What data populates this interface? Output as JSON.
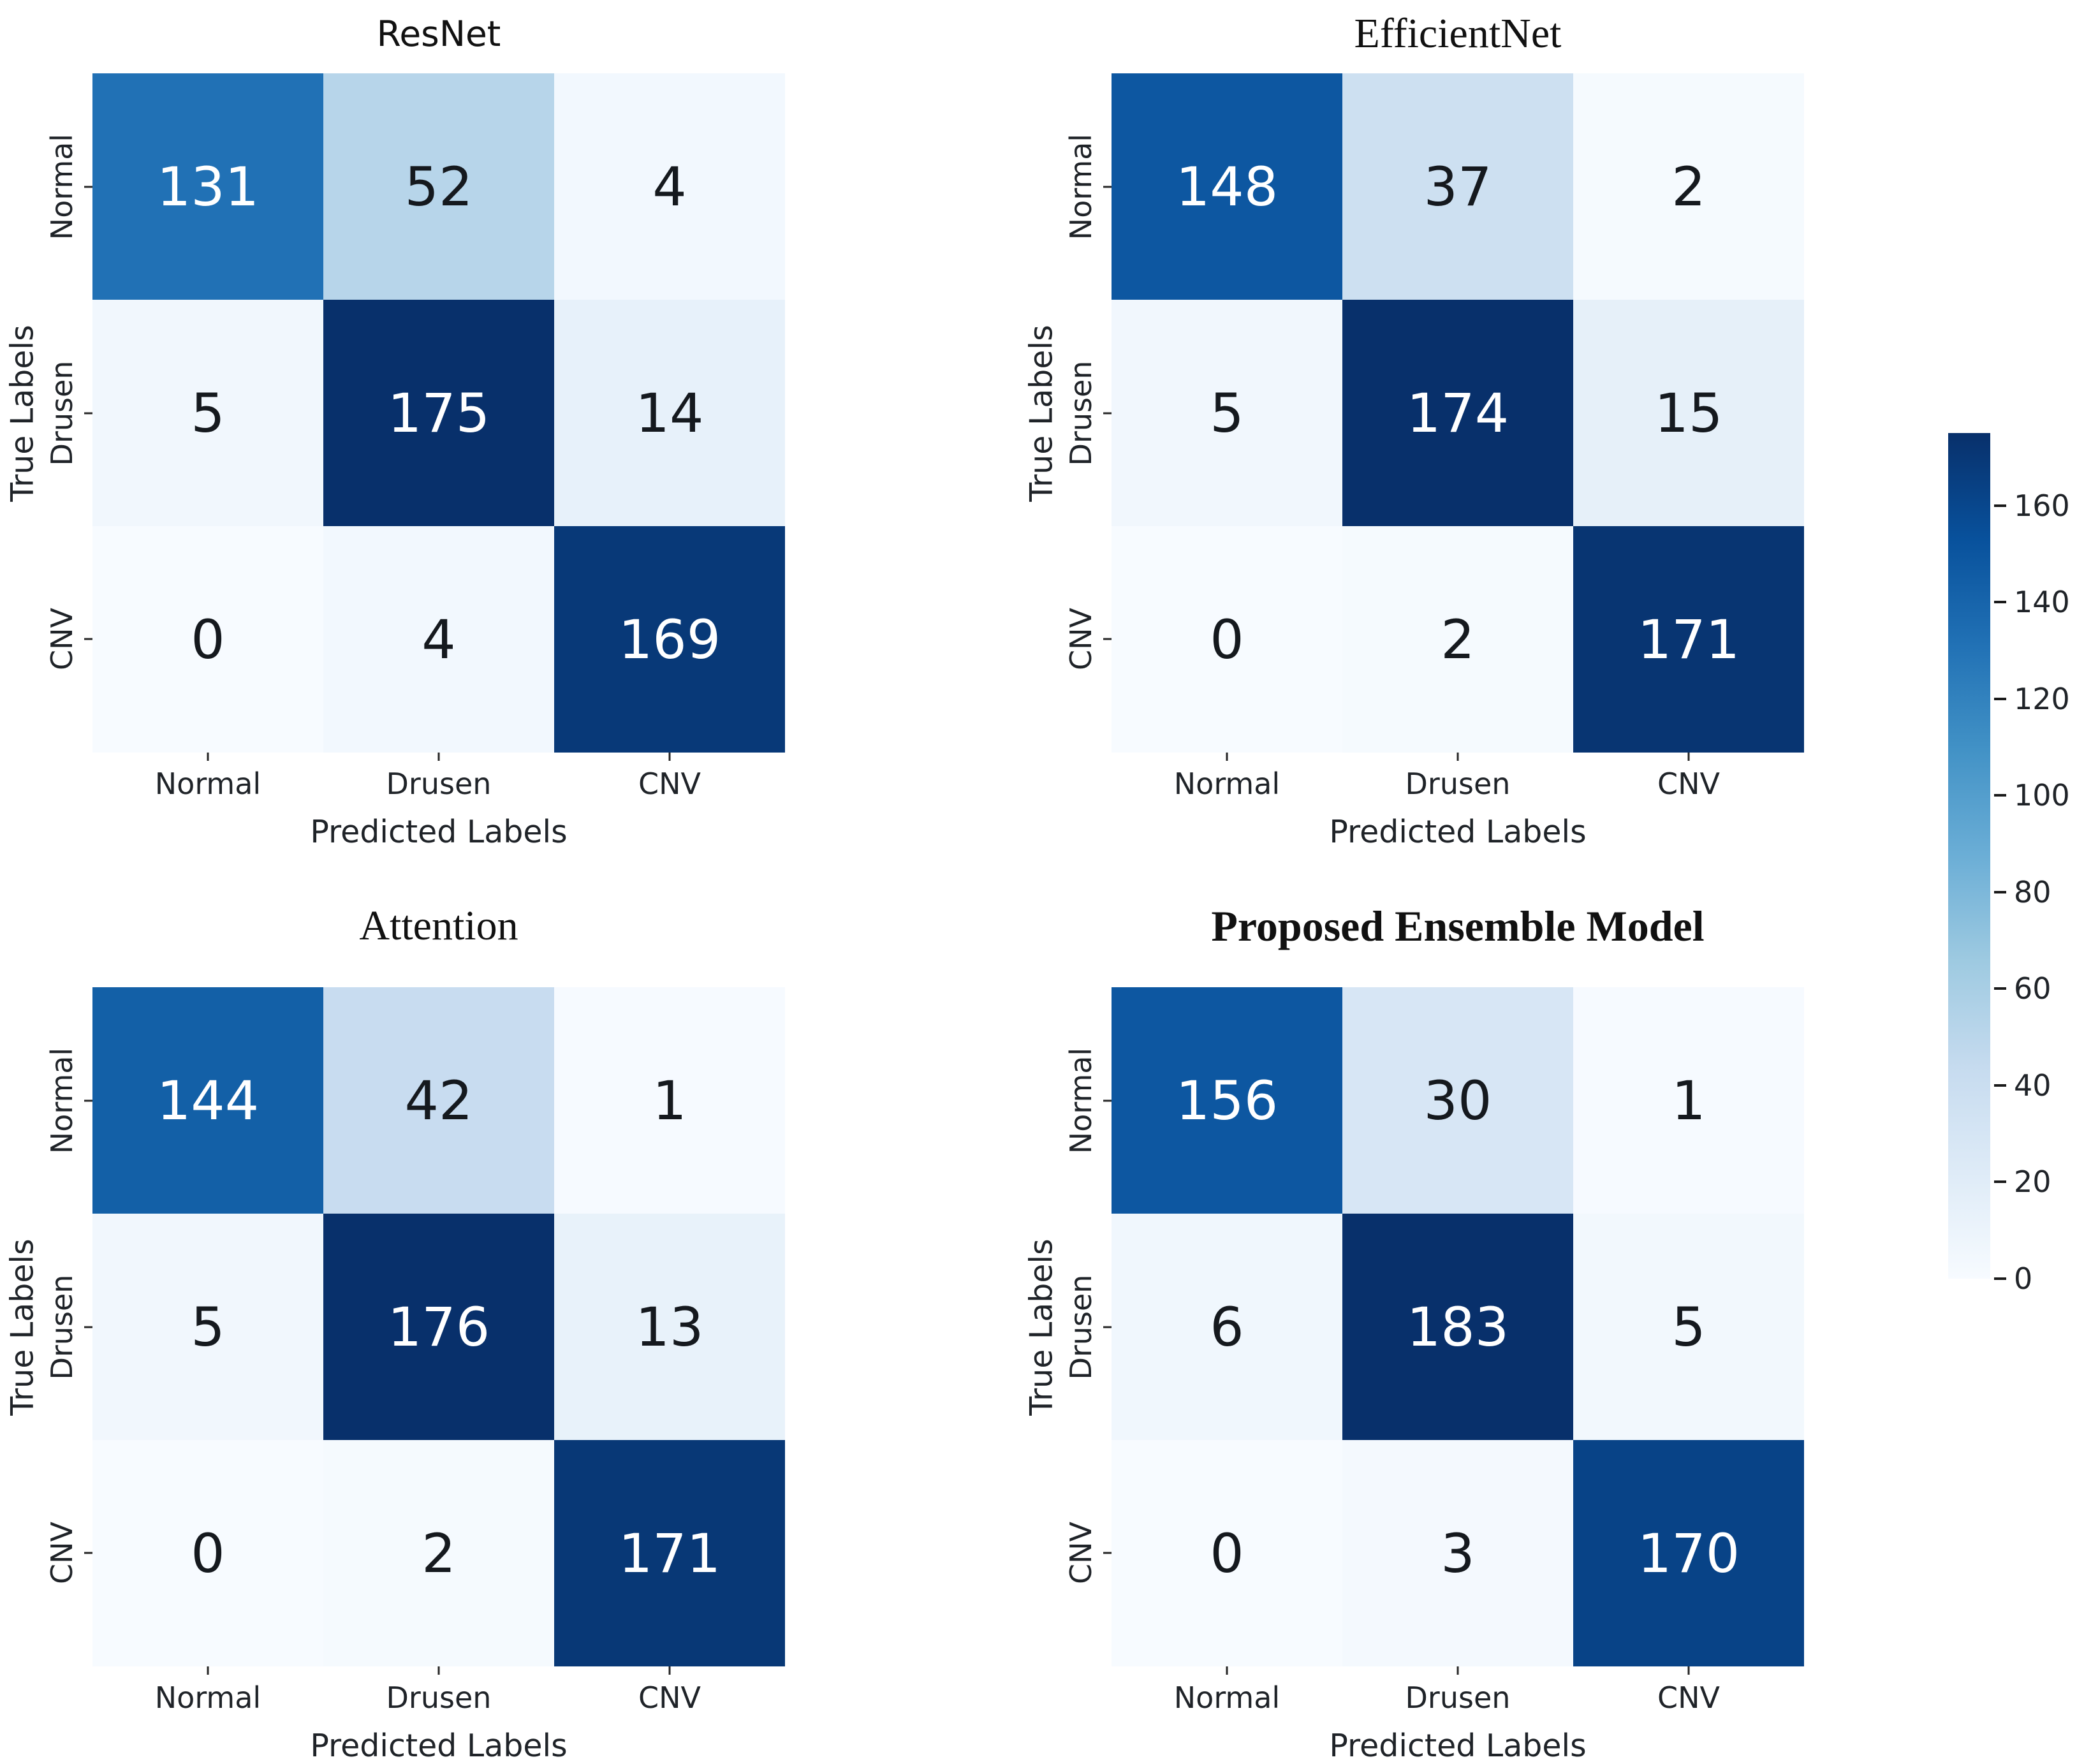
{
  "figure": {
    "background": "#ffffff",
    "text_color": "#1a1a1a",
    "colormap_name": "Blues",
    "colormap_stops": [
      "#f7fbff",
      "#deebf7",
      "#c6dbef",
      "#9ecae1",
      "#6baed6",
      "#4292c6",
      "#2171b5",
      "#08519c",
      "#08306b"
    ],
    "cell_text_dark": "#15191e",
    "cell_text_light": "#ffffff"
  },
  "axis": {
    "x_label": "Predicted Labels",
    "y_label": "True Labels",
    "x_ticks": [
      "Normal",
      "Drusen",
      "CNV"
    ],
    "y_ticks": [
      "Normal",
      "Drusen",
      "CNV"
    ]
  },
  "chart_data": [
    {
      "type": "heatmap",
      "title": "ResNet",
      "title_style": "sans",
      "rows": [
        "Normal",
        "Drusen",
        "CNV"
      ],
      "cols": [
        "Normal",
        "Drusen",
        "CNV"
      ],
      "values": [
        [
          131,
          52,
          4
        ],
        [
          5,
          175,
          14
        ],
        [
          0,
          4,
          169
        ]
      ],
      "vmin": 0,
      "vmax": 175
    },
    {
      "type": "heatmap",
      "title": "EfficientNet",
      "title_style": "serif",
      "rows": [
        "Normal",
        "Drusen",
        "CNV"
      ],
      "cols": [
        "Normal",
        "Drusen",
        "CNV"
      ],
      "values": [
        [
          148,
          37,
          2
        ],
        [
          5,
          174,
          15
        ],
        [
          0,
          2,
          171
        ]
      ],
      "vmin": 0,
      "vmax": 174
    },
    {
      "type": "heatmap",
      "title": "Attention",
      "title_style": "serif",
      "rows": [
        "Normal",
        "Drusen",
        "CNV"
      ],
      "cols": [
        "Normal",
        "Drusen",
        "CNV"
      ],
      "values": [
        [
          144,
          42,
          1
        ],
        [
          5,
          176,
          13
        ],
        [
          0,
          2,
          171
        ]
      ],
      "vmin": 0,
      "vmax": 176
    },
    {
      "type": "heatmap",
      "title": "Proposed Ensemble Model",
      "title_style": "serif-bold",
      "rows": [
        "Normal",
        "Drusen",
        "CNV"
      ],
      "cols": [
        "Normal",
        "Drusen",
        "CNV"
      ],
      "values": [
        [
          156,
          30,
          1
        ],
        [
          6,
          183,
          5
        ],
        [
          0,
          3,
          170
        ]
      ],
      "vmin": 0,
      "vmax": 183
    }
  ],
  "colorbar": {
    "min": 0,
    "max": 175,
    "ticks": [
      0,
      20,
      40,
      60,
      80,
      100,
      120,
      140,
      160
    ],
    "orientation": "vertical",
    "position": "right"
  }
}
